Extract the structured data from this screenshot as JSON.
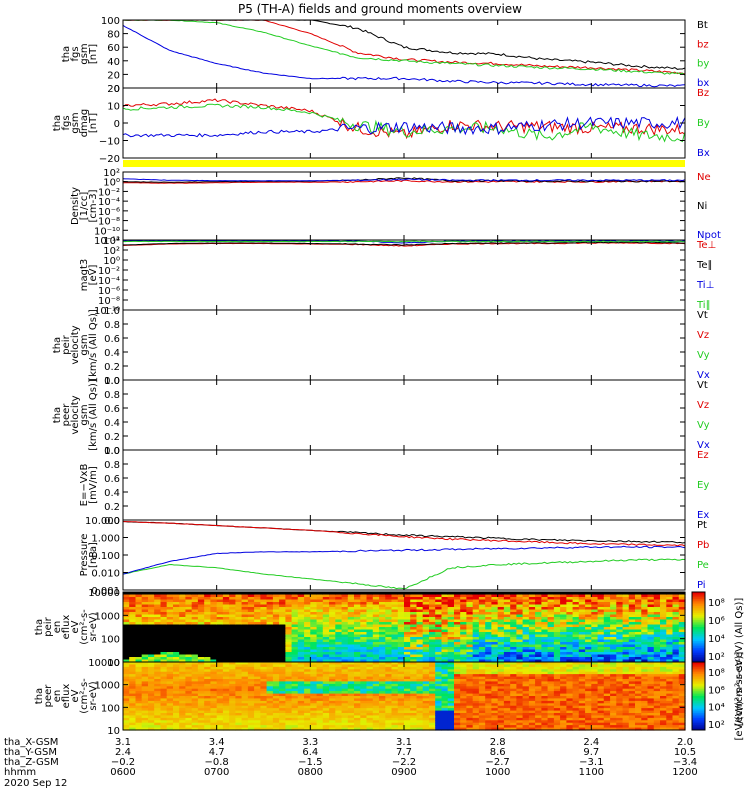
{
  "title": "P5 (TH-A) fields and ground moments overview",
  "colors": {
    "black": "#000000",
    "red": "#e00000",
    "green": "#22cc22",
    "blue": "#0000e0",
    "yellow": "#ffff00",
    "frame": "#000000"
  },
  "chart_data": [
    {
      "type": "line",
      "panel": "fgs-gsm-mag",
      "ylabel": [
        "tha",
        "fgs",
        "gsm",
        "[nT]"
      ],
      "yticks": [
        "100",
        "80",
        "60",
        "40",
        "20",
        "0"
      ],
      "ylim": [
        0,
        100
      ],
      "x_hours": [
        6.0,
        6.5,
        7.0,
        7.5,
        8.0,
        8.5,
        9.0,
        9.5,
        10.0,
        10.5,
        11.0,
        11.5,
        12.0
      ],
      "series": [
        {
          "name": "Bt",
          "color": "black",
          "values": [
            100,
            100,
            100,
            100,
            100,
            88,
            60,
            52,
            50,
            42,
            38,
            32,
            28
          ]
        },
        {
          "name": "bz",
          "color": "red",
          "values": [
            100,
            100,
            100,
            100,
            80,
            52,
            42,
            38,
            36,
            32,
            30,
            26,
            22
          ]
        },
        {
          "name": "by",
          "color": "green",
          "values": [
            100,
            100,
            96,
            82,
            62,
            45,
            40,
            36,
            33,
            30,
            28,
            24,
            20
          ]
        },
        {
          "name": "bx",
          "color": "blue",
          "values": [
            92,
            55,
            36,
            22,
            14,
            14,
            14,
            10,
            8,
            7,
            5,
            4,
            3
          ]
        }
      ],
      "legend": [
        "Bt",
        "bz",
        "by",
        "bx"
      ]
    },
    {
      "type": "line",
      "panel": "fgs-gsm-dmag",
      "ylabel": [
        "tha",
        "fgs",
        "gsm",
        "dmag",
        "[nT]"
      ],
      "yticks": [
        "20",
        "10",
        "0",
        "−10",
        "−20"
      ],
      "ylim": [
        -20,
        20
      ],
      "x_hours": [
        6.0,
        6.5,
        7.0,
        7.5,
        8.0,
        8.5,
        9.0,
        9.5,
        10.0,
        10.5,
        11.0,
        11.5,
        12.0
      ],
      "series": [
        {
          "name": "Bz",
          "color": "red",
          "values": [
            10,
            11,
            13,
            10,
            7,
            -3,
            -7,
            -1,
            -2,
            -2,
            -3,
            -3,
            -4
          ]
        },
        {
          "name": "By",
          "color": "green",
          "values": [
            8,
            9,
            10,
            9,
            6,
            -1,
            -5,
            -3,
            -3,
            -8,
            -2,
            -7,
            -8
          ]
        },
        {
          "name": "Bx",
          "color": "blue",
          "values": [
            -7,
            -7,
            -7,
            -5,
            -5,
            -3,
            -2,
            -3,
            -3,
            -1,
            0,
            0,
            0
          ]
        }
      ],
      "legend": [
        "Bz",
        "By",
        "Bx"
      ]
    },
    {
      "type": "line",
      "panel": "density",
      "ylabel": [
        "Density",
        "[1/cc]",
        "[cm-3]"
      ],
      "yticks": [
        "10²",
        "10⁰",
        "10⁻²",
        "10⁻⁴",
        "10⁻⁶",
        "10⁻⁸",
        "10⁻¹⁰",
        "10⁻¹²"
      ],
      "ylim_log10": [
        -12,
        2
      ],
      "x_hours": [
        6.0,
        6.5,
        7.0,
        7.5,
        8.0,
        8.5,
        9.0,
        9.5,
        10.0,
        10.5,
        11.0,
        11.5,
        12.0
      ],
      "series": [
        {
          "name": "Ne",
          "color": "red",
          "values_log10": [
            -0.2,
            -0.3,
            -0.2,
            -0.1,
            -0.1,
            0.0,
            0.2,
            0.0,
            0.0,
            0.0,
            0.0,
            0.1,
            0.1
          ]
        },
        {
          "name": "Ni",
          "color": "black",
          "values_log10": [
            0.0,
            -0.1,
            0.0,
            0.1,
            0.1,
            0.3,
            0.8,
            0.2,
            0.2,
            0.1,
            0.1,
            0.1,
            0.1
          ]
        },
        {
          "name": "Npot",
          "color": "blue",
          "values_log10": [
            0.6,
            0.3,
            0.2,
            0.2,
            0.2,
            0.3,
            0.5,
            0.3,
            0.3,
            0.3,
            0.3,
            0.3,
            0.3
          ]
        }
      ],
      "legend": [
        "Ne",
        "Ni",
        "Npot"
      ]
    },
    {
      "type": "line",
      "panel": "temperature",
      "ylabel": [
        "magt3",
        "[eV]"
      ],
      "yticks": [
        "10⁴",
        "10²",
        "10⁰",
        "10⁻²",
        "10⁻⁴",
        "10⁻⁶",
        "10⁻⁸",
        "10⁻¹⁰"
      ],
      "ylim_log10": [
        -10,
        4
      ],
      "x_hours": [
        6.0,
        6.5,
        7.0,
        7.5,
        8.0,
        8.5,
        9.0,
        9.5,
        10.0,
        10.5,
        11.0,
        11.5,
        12.0
      ],
      "series": [
        {
          "name": "Te⊥",
          "color": "red",
          "values_log10": [
            2.9,
            3.2,
            3.3,
            3.3,
            3.2,
            3.1,
            2.8,
            3.2,
            3.3,
            3.3,
            3.4,
            3.4,
            3.3
          ]
        },
        {
          "name": "Te∥",
          "color": "black",
          "values_log10": [
            3.0,
            3.3,
            3.4,
            3.4,
            3.3,
            3.2,
            3.0,
            3.3,
            3.4,
            3.4,
            3.5,
            3.5,
            3.4
          ]
        },
        {
          "name": "Ti⊥",
          "color": "blue",
          "values_log10": [
            3.8,
            3.8,
            3.8,
            3.8,
            3.8,
            3.8,
            3.4,
            3.8,
            3.8,
            3.8,
            3.8,
            3.8,
            3.8
          ]
        },
        {
          "name": "Ti∥",
          "color": "green",
          "values_log10": [
            3.7,
            3.7,
            3.7,
            3.7,
            3.7,
            3.7,
            3.7,
            3.7,
            3.7,
            3.7,
            3.7,
            3.7,
            3.7
          ]
        }
      ],
      "legend": [
        "Te⊥",
        "Te∥",
        "Ti⊥",
        "Ti∥"
      ]
    },
    {
      "type": "line",
      "panel": "peir-velocity",
      "ylabel": [
        "tha",
        "peir",
        "velocity",
        "gsm",
        "[km/s (All Qs)]"
      ],
      "yticks": [
        "1.0",
        "0.8",
        "0.6",
        "0.4",
        "0.2",
        "0.0"
      ],
      "ylim": [
        0,
        1
      ],
      "series": [],
      "legend": [
        "Vt",
        "Vz",
        "Vy",
        "Vx"
      ]
    },
    {
      "type": "line",
      "panel": "peer-velocity",
      "ylabel": [
        "tha",
        "peer",
        "velocity",
        "gsm",
        "[km/s (All Qs)]"
      ],
      "yticks": [
        "1.0",
        "0.8",
        "0.6",
        "0.4",
        "0.2",
        "0.0"
      ],
      "ylim": [
        0,
        1
      ],
      "series": [],
      "legend": [
        "Vt",
        "Vz",
        "Vy",
        "Vx"
      ]
    },
    {
      "type": "line",
      "panel": "e-field",
      "ylabel": [
        "E=−VxB",
        "[mV/m]"
      ],
      "yticks": [
        "1.0",
        "0.8",
        "0.6",
        "0.4",
        "0.2",
        "0.0"
      ],
      "ylim": [
        0,
        1
      ],
      "series": [],
      "legend": [
        "Ez",
        "Ey",
        "Ex"
      ]
    },
    {
      "type": "line",
      "panel": "pressure",
      "ylabel": [
        "Pressure",
        "[nPa]"
      ],
      "yticks": [
        "10.000",
        "1.000",
        "0.100",
        "0.010",
        "0.001"
      ],
      "ylim_log10": [
        -3,
        1.4
      ],
      "x_hours": [
        6.0,
        6.5,
        7.0,
        7.5,
        8.0,
        8.5,
        9.0,
        9.5,
        10.0,
        10.5,
        11.0,
        11.5,
        12.0
      ],
      "series": [
        {
          "name": "Pt",
          "color": "black",
          "values_log10": [
            1.3,
            1.2,
            1.05,
            0.9,
            0.75,
            0.6,
            0.45,
            0.35,
            0.25,
            0.15,
            0.1,
            0.05,
            0.0
          ]
        },
        {
          "name": "Pb",
          "color": "red",
          "values_log10": [
            1.3,
            1.2,
            1.05,
            0.9,
            0.75,
            0.55,
            0.35,
            0.2,
            0.1,
            0.0,
            -0.1,
            -0.15,
            -0.2
          ]
        },
        {
          "name": "Pe",
          "color": "green",
          "values_log10": [
            -2.0,
            -1.4,
            -1.6,
            -2.0,
            -2.3,
            -2.6,
            -2.95,
            -1.6,
            -1.4,
            -1.3,
            -1.2,
            -1.1,
            -1.1
          ]
        },
        {
          "name": "Pi",
          "color": "blue",
          "values_log10": [
            -2.0,
            -1.2,
            -0.7,
            -0.6,
            -0.6,
            -0.55,
            -0.5,
            -0.45,
            -0.4,
            -0.35,
            -0.3,
            -0.3,
            -0.3
          ]
        }
      ],
      "legend": [
        "Pt",
        "Pb",
        "Pe",
        "Pi"
      ]
    },
    {
      "type": "heatmap",
      "panel": "peir-eflux",
      "ylabel": [
        "tha",
        "peir",
        "en",
        "eflux",
        "eV",
        "(cm²-s-",
        "sr-eV)"
      ],
      "yticks": [
        "10000",
        "1000",
        "100",
        "10"
      ],
      "colorbar_label": "[eV/(cm²-s-sr-eV) (All Qs)]",
      "colorbar_ticks": [
        "10⁸",
        "10⁶",
        "10⁴",
        "10²"
      ]
    },
    {
      "type": "heatmap",
      "panel": "peer-eflux",
      "ylabel": [
        "tha",
        "peer",
        "en",
        "eflux",
        "eV",
        "(cm²-s-",
        "sr-eV)"
      ],
      "yticks": [
        "10000",
        "1000",
        "100",
        "10"
      ],
      "colorbar_label": "[eV/(cm²-s-sr-eV)]",
      "colorbar_ticks": [
        "10⁸",
        "10⁶",
        "10⁴",
        "10²"
      ]
    }
  ],
  "footer": {
    "row_labels": [
      "tha_X-GSM",
      "tha_Y-GSM",
      "tha_Z-GSM",
      "hhmm",
      "2020 Sep 12"
    ],
    "x_gsm": [
      "3.1",
      "3.4",
      "3.3",
      "3.1",
      "2.8",
      "2.4",
      "2.0"
    ],
    "y_gsm": [
      "2.4",
      "4.7",
      "6.4",
      "7.7",
      "8.6",
      "9.7",
      "10.5"
    ],
    "z_gsm": [
      "−0.2",
      "−0.8",
      "−1.5",
      "−2.2",
      "−2.7",
      "−3.1",
      "−3.4"
    ],
    "hhmm": [
      "0600",
      "0700",
      "0800",
      "0900",
      "1000",
      "1100",
      "1200"
    ]
  }
}
